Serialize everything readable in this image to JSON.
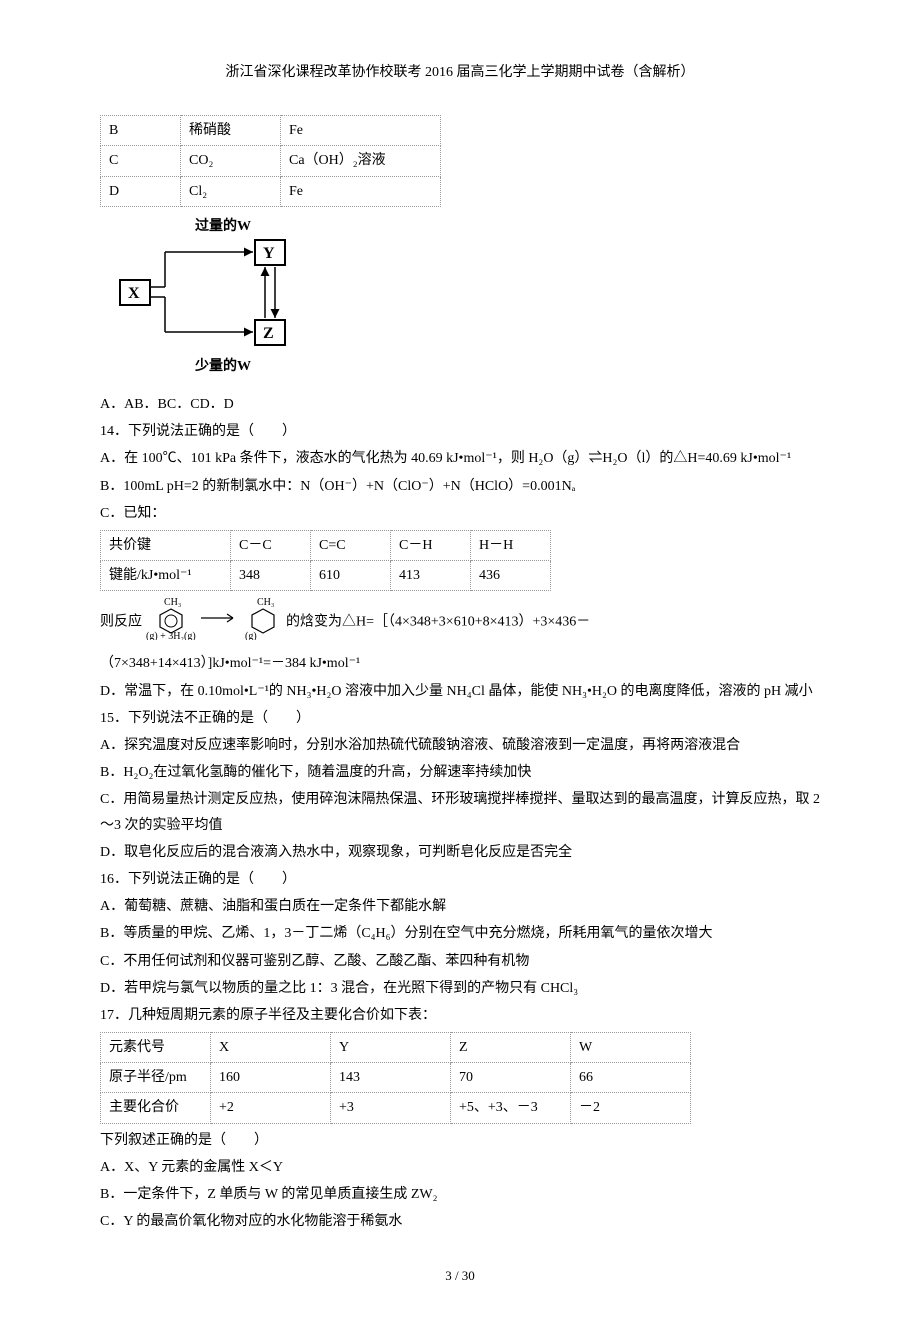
{
  "header": "浙江省深化课程改革协作校联考 2016 届高三化学上学期期中试卷（含解析）",
  "table1": {
    "rows": [
      [
        "B",
        "稀硝酸",
        "Fe"
      ],
      [
        "C",
        "CO₂",
        "Ca（OH）₂溶液"
      ],
      [
        "D",
        "Cl₂",
        "Fe"
      ]
    ]
  },
  "diagram": {
    "top_label": "过量的W",
    "bottom_label": "少量的W",
    "x_label": "X",
    "y_label": "Y",
    "z_label": "Z"
  },
  "q13_options": "A．AB．BC．CD．D",
  "q14_title": "14．下列说法正确的是（　　）",
  "q14_a": "A．在 100℃、101 kPa 条件下，液态水的气化热为 40.69 kJ•mol⁻¹，则 H₂O（g）⇌H₂O（l）的△H=40.69 kJ•mol⁻¹",
  "q14_b": "B．100mL pH=2 的新制氯水中：N（OH⁻）+N（ClO⁻）+N（HClO）=0.001Nₐ",
  "q14_c": "C．已知：",
  "table2": {
    "rows": [
      [
        "共价键",
        "C－C",
        "C=C",
        "C－H",
        "H－H"
      ],
      [
        "键能/kJ•mol⁻¹",
        "348",
        "610",
        "413",
        "436"
      ]
    ]
  },
  "q14_reaction_pre": "则反应",
  "q14_reaction_post": "的焓变为△H=［（4×348+3×610+8×413）+3×436－",
  "q14_reaction_line2": "（7×348+14×413）]kJ•mol⁻¹=－384 kJ•mol⁻¹",
  "q14_d": "D．常温下，在 0.10mol•L⁻¹的 NH₃•H₂O 溶液中加入少量 NH₄Cl 晶体，能使 NH₃•H₂O 的电离度降低，溶液的 pH 减小",
  "q15_title": "15．下列说法不正确的是（　　）",
  "q15_a": "A．探究温度对反应速率影响时，分别水浴加热硫代硫酸钠溶液、硫酸溶液到一定温度，再将两溶液混合",
  "q15_b": "B．H₂O₂在过氧化氢酶的催化下，随着温度的升高，分解速率持续加快",
  "q15_c": "C．用简易量热计测定反应热，使用碎泡沫隔热保温、环形玻璃搅拌棒搅拌、量取达到的最高温度，计算反应热，取 2～3 次的实验平均值",
  "q15_d": "D．取皂化反应后的混合液滴入热水中，观察现象，可判断皂化反应是否完全",
  "q16_title": "16．下列说法正确的是（　　）",
  "q16_a": "A．葡萄糖、蔗糖、油脂和蛋白质在一定条件下都能水解",
  "q16_b": "B．等质量的甲烷、乙烯、1，3－丁二烯（C₄H₆）分别在空气中充分燃烧，所耗用氧气的量依次增大",
  "q16_c": "C．不用任何试剂和仪器可鉴别乙醇、乙酸、乙酸乙酯、苯四种有机物",
  "q16_d": "D．若甲烷与氯气以物质的量之比 1：3 混合，在光照下得到的产物只有 CHCl₃",
  "q17_title": "17．几种短周期元素的原子半径及主要化合价如下表：",
  "table3": {
    "rows": [
      [
        "元素代号",
        "X",
        "Y",
        "Z",
        "W"
      ],
      [
        "原子半径/pm",
        "160",
        "143",
        "70",
        "66"
      ],
      [
        "主要化合价",
        "+2",
        "+3",
        "+5、+3、－3",
        "－2"
      ]
    ]
  },
  "q17_subtitle": "下列叙述正确的是（　　）",
  "q17_a": "A．X、Y 元素的金属性 X＜Y",
  "q17_b": "B．一定条件下，Z 单质与 W 的常见单质直接生成 ZW₂",
  "q17_c": "C．Y 的最高价氧化物对应的水化物能溶于稀氨水",
  "footer": "3 / 30"
}
